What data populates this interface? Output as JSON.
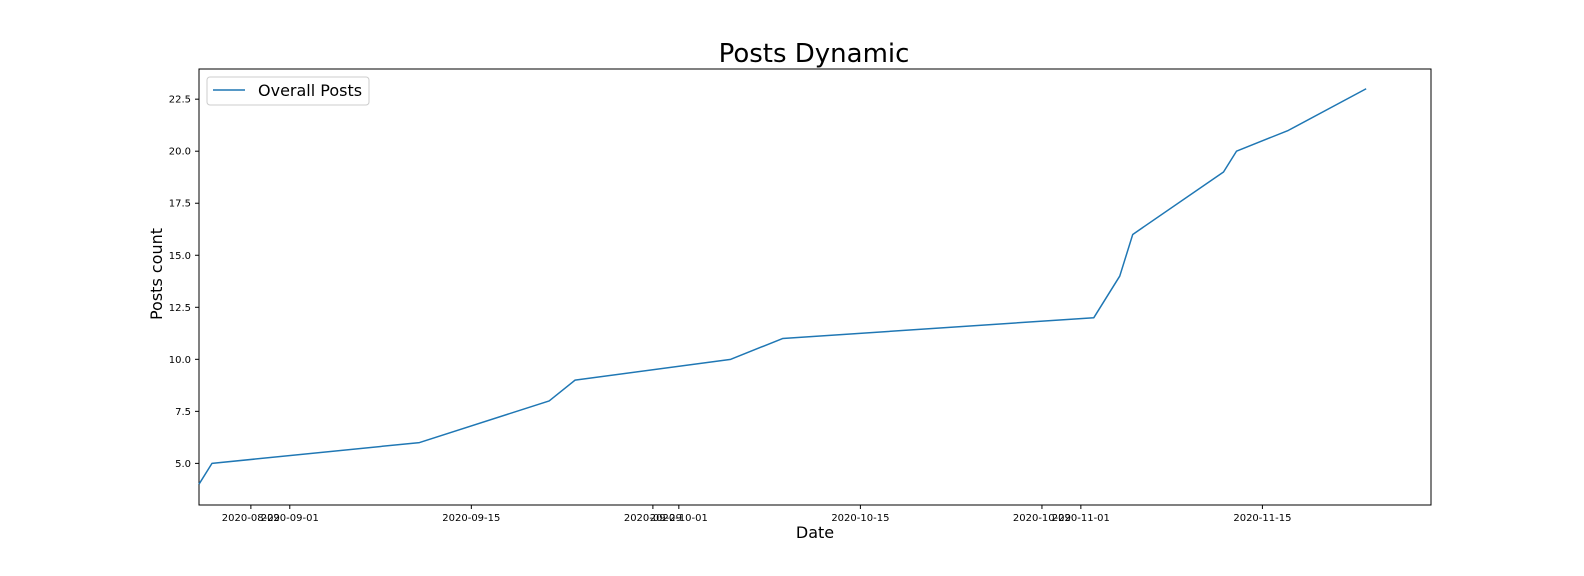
{
  "chart_data": {
    "type": "line",
    "title": "Posts Dynamic",
    "xlabel": "Date",
    "ylabel": "Posts count",
    "x_tick_labels": [
      "2020-08-29",
      "2020-09-01",
      "2020-09-15",
      "2020-09-29",
      "2020-10-01",
      "2020-10-15",
      "2020-10-29",
      "2020-11-01",
      "2020-11-15"
    ],
    "y_tick_labels": [
      "5.0",
      "7.5",
      "10.0",
      "12.5",
      "15.0",
      "17.5",
      "20.0",
      "22.5"
    ],
    "xlim": [
      "2020-08-25",
      "2020-11-28"
    ],
    "ylim": [
      3.0,
      23.95
    ],
    "grid": false,
    "legend_position": "upper-left",
    "series": [
      {
        "name": "Overall Posts",
        "color": "#1f77b4",
        "x": [
          "2020-08-25",
          "2020-08-26",
          "2020-09-11",
          "2020-09-21",
          "2020-09-23",
          "2020-10-05",
          "2020-10-09",
          "2020-11-02",
          "2020-11-04",
          "2020-11-05",
          "2020-11-12",
          "2020-11-13",
          "2020-11-17",
          "2020-11-23"
        ],
        "values": [
          4,
          5,
          6,
          8,
          9,
          10,
          11,
          12,
          14,
          16,
          19,
          20,
          21,
          23
        ]
      }
    ]
  }
}
